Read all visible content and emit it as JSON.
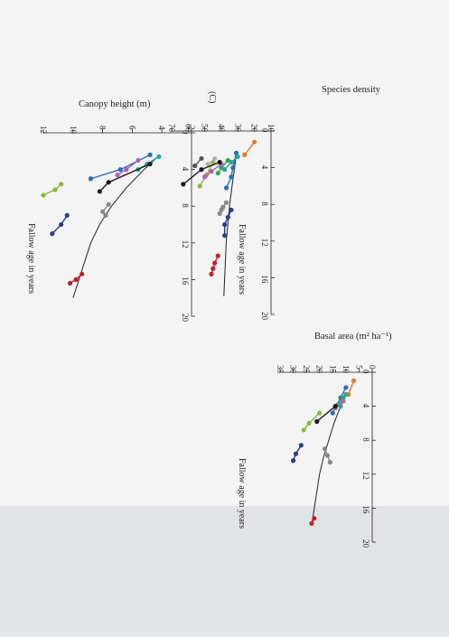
{
  "page": {
    "panel_label": "(C)"
  },
  "chart_data": [
    {
      "id": "species",
      "type": "scatter",
      "title": "Species density",
      "xlabel": "Fallow age in years",
      "ylabel": "",
      "xlim": [
        0,
        20
      ],
      "ylim": [
        10,
        70
      ],
      "x_ticks": [
        0,
        4,
        8,
        12,
        16,
        20
      ],
      "y_ticks": [
        10,
        20,
        30,
        40,
        50,
        60,
        70
      ],
      "x_tick_labels": [
        "0",
        "4",
        "8",
        "12",
        "16",
        "20"
      ],
      "y_tick_labels": [
        "10",
        "20",
        "30",
        "40",
        "50",
        "60",
        "70"
      ],
      "fit_curve": [
        [
          2.5,
          31
        ],
        [
          4,
          32
        ],
        [
          6,
          33.5
        ],
        [
          8,
          35
        ],
        [
          10,
          36
        ],
        [
          12,
          37
        ],
        [
          14,
          37.5
        ],
        [
          16,
          38
        ],
        [
          18,
          38.5
        ]
      ],
      "series": [
        {
          "color": "#e57a2c",
          "points": [
            [
              1.2,
              20
            ],
            [
              2.6,
              26
            ]
          ]
        },
        {
          "color": "#2a6fb5",
          "points": [
            [
              2.4,
              31
            ],
            [
              4.0,
              33
            ],
            [
              5.0,
              34
            ],
            [
              6.2,
              37
            ]
          ]
        },
        {
          "color": "#26a6a0",
          "points": [
            [
              2.8,
              30
            ],
            [
              3.4,
              34
            ],
            [
              4.2,
              38
            ]
          ]
        },
        {
          "color": "#2fa84f",
          "points": [
            [
              3.2,
              36
            ],
            [
              4.0,
              40
            ],
            [
              4.6,
              42
            ]
          ]
        },
        {
          "color": "#8ab839",
          "points": [
            [
              3.4,
              45
            ],
            [
              4.8,
              49
            ],
            [
              6.0,
              53
            ]
          ]
        },
        {
          "color": "#b15db8",
          "points": [
            [
              3.6,
              40
            ],
            [
              4.4,
              46
            ],
            [
              5.0,
              50
            ]
          ]
        },
        {
          "color": "#b0b0b0",
          "points": [
            [
              3.0,
              44
            ],
            [
              3.6,
              48
            ]
          ]
        },
        {
          "color": "#1a1a1a",
          "points": [
            [
              3.4,
              41
            ],
            [
              4.2,
              52
            ],
            [
              5.8,
              63
            ]
          ]
        },
        {
          "color": "#555555",
          "points": [
            [
              3.0,
              52
            ],
            [
              3.8,
              56
            ]
          ]
        },
        {
          "color": "#888888",
          "points": [
            [
              7.8,
              37
            ],
            [
              8.3,
              39
            ],
            [
              8.6,
              40
            ],
            [
              9.0,
              41
            ]
          ]
        },
        {
          "color": "#2f3a8f",
          "points": [
            [
              8.6,
              34
            ],
            [
              9.4,
              36
            ],
            [
              10.2,
              38
            ],
            [
              11.4,
              38
            ]
          ]
        },
        {
          "color": "#c0202a",
          "points": [
            [
              13.6,
              42
            ],
            [
              14.4,
              44
            ],
            [
              15.0,
              45
            ],
            [
              15.6,
              46
            ]
          ]
        }
      ],
      "annotations": []
    },
    {
      "id": "canopy",
      "type": "scatter",
      "title": "Canopy height (m)",
      "xlabel": "Fallow age in years",
      "ylabel": "",
      "xlim": [
        0,
        20
      ],
      "ylim": [
        2,
        12
      ],
      "x_ticks": [
        0,
        4,
        8,
        12,
        16,
        20
      ],
      "y_ticks": [
        2,
        4,
        6,
        8,
        10,
        12
      ],
      "x_tick_labels": [
        "0",
        "4",
        "8",
        "12",
        "16",
        "20"
      ],
      "y_tick_labels": [
        "2",
        "4",
        "6",
        "8",
        "10",
        "12"
      ],
      "fit_curve": [
        [
          2.5,
          4.2
        ],
        [
          4,
          5.2
        ],
        [
          6,
          6.4
        ],
        [
          8,
          7.4
        ],
        [
          10,
          8.2
        ],
        [
          12,
          8.8
        ],
        [
          14,
          9.2
        ],
        [
          16,
          9.6
        ],
        [
          18,
          10.0
        ]
      ],
      "series": [
        {
          "color": "#2a6fb5",
          "points": [
            [
              2.4,
              4.8
            ],
            [
              4.0,
              6.8
            ],
            [
              5.0,
              8.8
            ]
          ]
        },
        {
          "color": "#26a6a0",
          "points": [
            [
              2.6,
              4.2
            ],
            [
              3.4,
              5.0
            ],
            [
              4.0,
              5.6
            ]
          ]
        },
        {
          "color": "#b15db8",
          "points": [
            [
              3.0,
              5.6
            ],
            [
              4.0,
              6.4
            ],
            [
              4.6,
              7.0
            ]
          ]
        },
        {
          "color": "#1a1a1a",
          "points": [
            [
              3.4,
              4.8
            ],
            [
              5.4,
              7.6
            ],
            [
              6.4,
              8.2
            ]
          ]
        },
        {
          "color": "#8ab839",
          "points": [
            [
              5.6,
              10.8
            ],
            [
              6.2,
              11.2
            ],
            [
              6.8,
              12.0
            ]
          ]
        },
        {
          "color": "#888888",
          "points": [
            [
              7.8,
              7.6
            ],
            [
              8.6,
              8.0
            ],
            [
              9.0,
              7.8
            ]
          ]
        },
        {
          "color": "#2f3a8f",
          "points": [
            [
              9.0,
              10.4
            ],
            [
              10.0,
              10.8
            ],
            [
              11.0,
              11.4
            ]
          ]
        },
        {
          "color": "#c0202a",
          "points": [
            [
              15.4,
              9.4
            ],
            [
              16.0,
              9.8
            ],
            [
              16.4,
              10.2
            ]
          ]
        }
      ],
      "annotations": []
    },
    {
      "id": "basal",
      "type": "scatter",
      "title": "Basal area (m² ha⁻¹)",
      "xlabel": "Fallow age in years",
      "ylabel": "",
      "xlim": [
        0,
        20
      ],
      "ylim": [
        0,
        35
      ],
      "x_ticks": [
        0,
        4,
        8,
        12,
        16,
        20
      ],
      "y_ticks": [
        0,
        5,
        10,
        15,
        20,
        25,
        30,
        35
      ],
      "x_tick_labels": [
        "0",
        "4",
        "8",
        "12",
        "16",
        "20"
      ],
      "y_tick_labels": [
        "0",
        "5",
        "10",
        "15",
        "20",
        "25",
        "30",
        "35"
      ],
      "fit_curve": [
        [
          2.5,
          10
        ],
        [
          4,
          12
        ],
        [
          6,
          14.5
        ],
        [
          8,
          16.5
        ],
        [
          10,
          18.5
        ],
        [
          12,
          20
        ],
        [
          14,
          21
        ],
        [
          16,
          22
        ],
        [
          18,
          23
        ]
      ],
      "series": [
        {
          "color": "#e57a2c",
          "points": [
            [
              1.0,
              7
            ],
            [
              2.6,
              9
            ]
          ]
        },
        {
          "color": "#2a6fb5",
          "points": [
            [
              1.8,
              10
            ],
            [
              3.0,
              12
            ],
            [
              4.8,
              15
            ]
          ]
        },
        {
          "color": "#26a6a0",
          "points": [
            [
              2.6,
              10
            ],
            [
              3.4,
              11
            ],
            [
              4.0,
              12
            ]
          ]
        },
        {
          "color": "#2fa84f",
          "points": [
            [
              3.0,
              11
            ],
            [
              3.8,
              13
            ]
          ]
        },
        {
          "color": "#b15db8",
          "points": [
            [
              3.4,
              11
            ],
            [
              4.2,
              14
            ]
          ]
        },
        {
          "color": "#1a1a1a",
          "points": [
            [
              4.0,
              14
            ],
            [
              5.8,
              21
            ]
          ]
        },
        {
          "color": "#8ab839",
          "points": [
            [
              4.8,
              20
            ],
            [
              6.0,
              24
            ],
            [
              6.8,
              26
            ]
          ]
        },
        {
          "color": "#888888",
          "points": [
            [
              9.0,
              18
            ],
            [
              9.8,
              17
            ],
            [
              10.6,
              16
            ]
          ]
        },
        {
          "color": "#2f3a8f",
          "points": [
            [
              8.6,
              27
            ],
            [
              9.6,
              29
            ],
            [
              10.4,
              30
            ]
          ]
        },
        {
          "color": "#c0202a",
          "points": [
            [
              17.2,
              22
            ],
            [
              17.8,
              23
            ]
          ]
        }
      ],
      "annotations": []
    }
  ]
}
